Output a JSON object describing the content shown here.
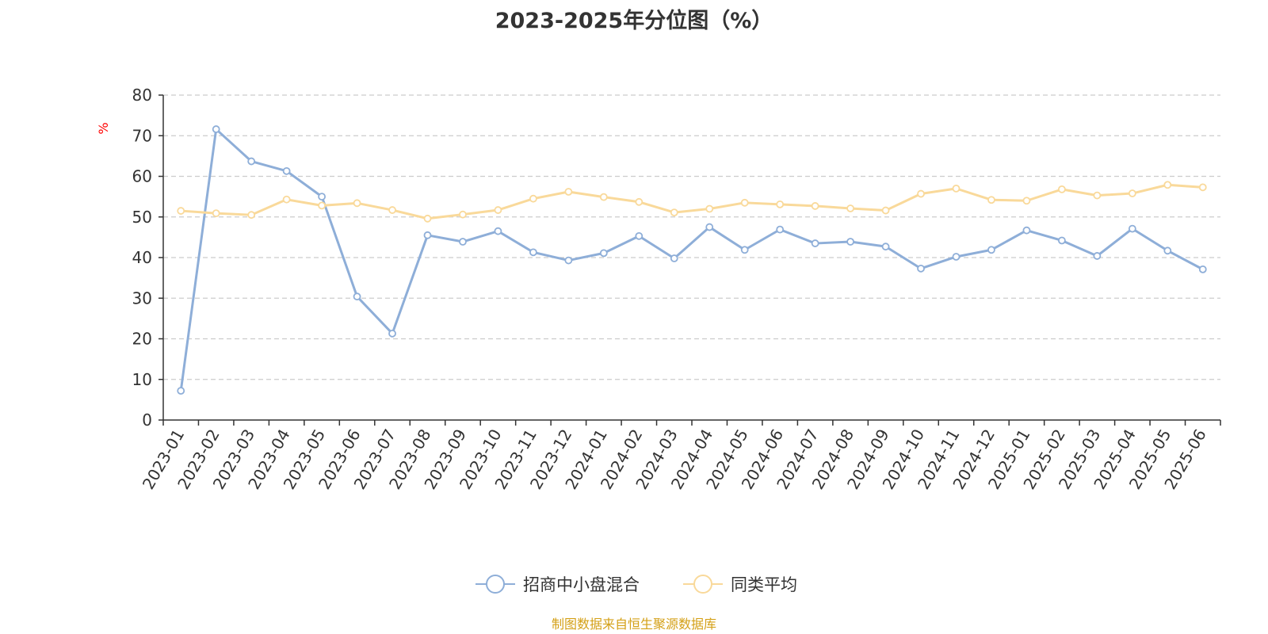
{
  "title": "2023-2025年分位图（%）",
  "source": "制图数据来自恒生聚源数据库",
  "chart_data": {
    "type": "line",
    "title": "2023-2025年分位图（%）",
    "y_unit": "%",
    "ylim": [
      0,
      80
    ],
    "yticks": [
      0,
      10,
      20,
      30,
      40,
      50,
      60,
      70,
      80
    ],
    "grid": true,
    "legend_position": "bottom",
    "categories": [
      "2023-01",
      "2023-02",
      "2023-03",
      "2023-04",
      "2023-05",
      "2023-06",
      "2023-07",
      "2023-08",
      "2023-09",
      "2023-10",
      "2023-11",
      "2023-12",
      "2024-01",
      "2024-02",
      "2024-03",
      "2024-04",
      "2024-05",
      "2024-06",
      "2024-07",
      "2024-08",
      "2024-09",
      "2024-10",
      "2024-11",
      "2024-12",
      "2025-01",
      "2025-02",
      "2025-03",
      "2025-04",
      "2025-05",
      "2025-06"
    ],
    "series": [
      {
        "name": "招商中小盘混合",
        "color": "#8eaed8",
        "values": [
          7.2,
          71.6,
          63.7,
          61.3,
          55.0,
          30.4,
          21.3,
          45.5,
          43.9,
          46.5,
          41.3,
          39.3,
          41.1,
          45.3,
          39.8,
          47.5,
          41.9,
          46.9,
          43.5,
          43.9,
          42.7,
          37.3,
          40.2,
          41.9,
          46.7,
          44.2,
          40.4,
          47.1,
          41.7,
          37.1
        ]
      },
      {
        "name": "同类平均",
        "color": "#f9d99a",
        "values": [
          51.5,
          50.9,
          50.5,
          54.3,
          52.8,
          53.4,
          51.7,
          49.6,
          50.6,
          51.7,
          54.5,
          56.2,
          54.9,
          53.7,
          51.1,
          52.0,
          53.5,
          53.1,
          52.7,
          52.1,
          51.6,
          55.7,
          57.0,
          54.2,
          54.0,
          56.8,
          55.3,
          55.8,
          57.9,
          57.3
        ]
      }
    ]
  }
}
